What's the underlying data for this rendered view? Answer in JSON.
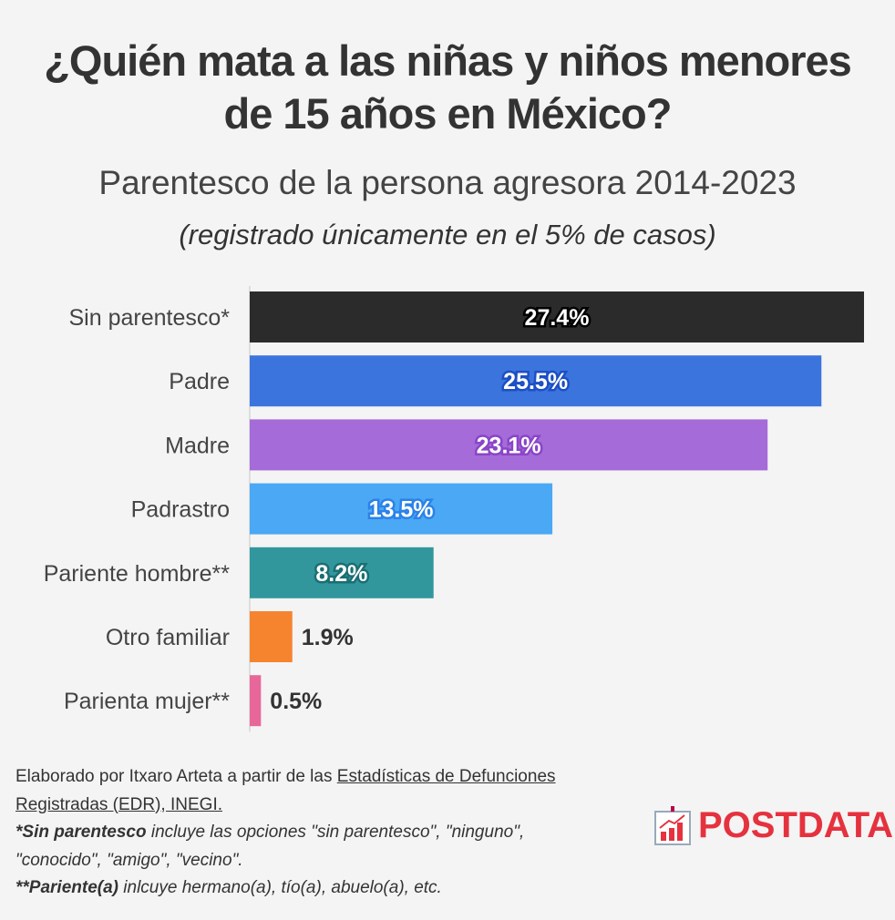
{
  "chart_data": {
    "type": "bar",
    "orientation": "horizontal",
    "title": "¿Quién mata a las niñas y niños menores de 15 años en México?",
    "subtitle": "Parentesco de la persona agresora 2014-2023",
    "note": "(registrado únicamente en el 5% de casos)",
    "categories": [
      "Sin parentesco*",
      "Padre",
      "Madre",
      "Padrastro",
      "Pariente hombre**",
      "Otro familiar",
      "Parienta mujer**"
    ],
    "values": [
      27.4,
      25.5,
      23.1,
      13.5,
      8.2,
      1.9,
      0.5
    ],
    "labels": [
      "27.4%",
      "25.5%",
      "23.1%",
      "13.5%",
      "8.2%",
      "1.9%",
      "0.5%"
    ],
    "colors": [
      "#2b2b2b",
      "#3c74de",
      "#a56bd8",
      "#4aa8f5",
      "#31979c",
      "#f6842f",
      "#e8679a"
    ],
    "outline_colors": [
      "#000000",
      "#1d4fc4",
      "#8a45c8",
      "#2b82e8",
      "#1a6f73",
      "#f4f4f4",
      "#f4f4f4"
    ],
    "xlim": [
      0,
      27.4
    ],
    "grid": false
  },
  "footer": {
    "source_prefix": "Elaborado por Itxaro Arteta a partir de las ",
    "source_link": "Estadísticas de Defunciones Registradas (EDR), INEGI.",
    "note1_bold": "*Sin parentesco",
    "note1_text": " incluye las opciones \"sin parentesco\", \"ninguno\", \"conocido\", \"amigo\", \"vecino\".",
    "note2_bold": "**Pariente(a)",
    "note2_text": " inlcuye hermano(a), tío(a), abuelo(a), etc."
  },
  "logo": {
    "text": "POSTDATA"
  }
}
